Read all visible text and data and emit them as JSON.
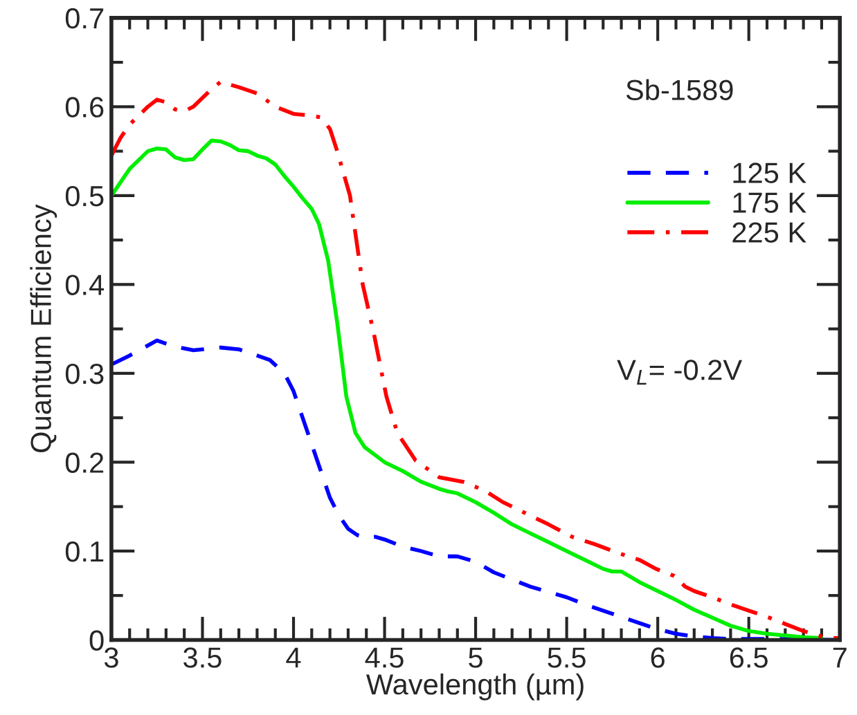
{
  "chart_data": {
    "type": "line",
    "xlabel": "Wavelength (µm)",
    "ylabel": "Quantum Efficiency",
    "annotations": [
      {
        "text": "Sb-1589"
      },
      {
        "text": "V$_{L}$= -0.2V"
      }
    ],
    "legend": "top right",
    "grid": false,
    "marker": "none",
    "xlim": [
      3,
      7
    ],
    "ylim": [
      0,
      0.7
    ],
    "xticks": [
      3,
      {
        "value": 3.1,
        "label": null
      },
      {
        "value": 3.2,
        "label": null
      },
      {
        "value": 3.3,
        "label": null
      },
      {
        "value": 3.4,
        "label": null
      },
      3.5,
      {
        "value": 3.6,
        "label": null
      },
      {
        "value": 3.7,
        "label": null
      },
      {
        "value": 3.8,
        "label": null
      },
      {
        "value": 3.9,
        "label": null
      },
      4,
      {
        "value": 4.1,
        "label": null
      },
      {
        "value": 4.2,
        "label": null
      },
      {
        "value": 4.3,
        "label": null
      },
      {
        "value": 4.4,
        "label": null
      },
      4.5,
      {
        "value": 4.6,
        "label": null
      },
      {
        "value": 4.7,
        "label": null
      },
      {
        "value": 4.8,
        "label": null
      },
      {
        "value": 4.9,
        "label": null
      },
      5,
      {
        "value": 5.1,
        "label": null
      },
      {
        "value": 5.2,
        "label": null
      },
      {
        "value": 5.3,
        "label": null
      },
      {
        "value": 5.4,
        "label": null
      },
      5.5,
      {
        "value": 5.6,
        "label": null
      },
      {
        "value": 5.7,
        "label": null
      },
      {
        "value": 5.8,
        "label": null
      },
      {
        "value": 5.9,
        "label": null
      },
      6,
      {
        "value": 6.1,
        "label": null
      },
      {
        "value": 6.2,
        "label": null
      },
      {
        "value": 6.3,
        "label": null
      },
      {
        "value": 6.4,
        "label": null
      },
      6.5,
      {
        "value": 6.6,
        "label": null
      },
      {
        "value": 6.7,
        "label": null
      },
      {
        "value": 6.8,
        "label": null
      },
      {
        "value": 6.9,
        "label": null
      },
      7
    ],
    "yticks": [
      0,
      {
        "value": 0.05,
        "label": null
      },
      0.1,
      {
        "value": 0.15,
        "label": null
      },
      0.2,
      {
        "value": 0.25,
        "label": null
      },
      0.3,
      {
        "value": 0.35,
        "label": null
      },
      0.4,
      {
        "value": 0.45,
        "label": null
      },
      0.5,
      {
        "value": 0.55,
        "label": null
      },
      0.6,
      {
        "value": 0.65,
        "label": null
      },
      0.7
    ],
    "series": [
      {
        "name": "125 K",
        "color": "#0000ff",
        "line_style": "dashed",
        "x": [
          3.0,
          3.1,
          3.25,
          3.35,
          3.45,
          3.6,
          3.7,
          3.8,
          3.87,
          3.95,
          4.0,
          4.05,
          4.1,
          4.15,
          4.2,
          4.25,
          4.3,
          4.35,
          4.4,
          4.45,
          4.5,
          4.6,
          4.7,
          4.8,
          4.9,
          5.0,
          5.1,
          5.2,
          5.3,
          5.4,
          5.5,
          5.6,
          5.7,
          5.8,
          5.9,
          6.0,
          6.1,
          6.2,
          6.3,
          6.4,
          6.5,
          6.7,
          7.0
        ],
        "values": [
          0.31,
          0.32,
          0.337,
          0.33,
          0.326,
          0.329,
          0.327,
          0.32,
          0.315,
          0.3,
          0.28,
          0.25,
          0.22,
          0.19,
          0.16,
          0.14,
          0.125,
          0.118,
          0.115,
          0.116,
          0.113,
          0.105,
          0.1,
          0.094,
          0.094,
          0.088,
          0.076,
          0.068,
          0.06,
          0.054,
          0.048,
          0.04,
          0.033,
          0.026,
          0.019,
          0.012,
          0.007,
          0.004,
          0.002,
          0.001,
          0.001,
          0.001,
          0.0
        ]
      },
      {
        "name": "175 K",
        "color": "#00ee00",
        "line_style": "solid",
        "x": [
          3.0,
          3.05,
          3.1,
          3.15,
          3.2,
          3.25,
          3.3,
          3.35,
          3.4,
          3.45,
          3.5,
          3.55,
          3.6,
          3.65,
          3.7,
          3.75,
          3.8,
          3.85,
          3.9,
          3.95,
          4.0,
          4.05,
          4.1,
          4.14,
          4.19,
          4.24,
          4.29,
          4.34,
          4.39,
          4.5,
          4.6,
          4.7,
          4.8,
          4.85,
          4.9,
          5.0,
          5.1,
          5.2,
          5.3,
          5.4,
          5.5,
          5.6,
          5.7,
          5.75,
          5.8,
          5.9,
          6.0,
          6.1,
          6.2,
          6.3,
          6.4,
          6.5,
          6.6,
          6.7,
          6.8,
          6.9
        ],
        "values": [
          0.5,
          0.515,
          0.53,
          0.54,
          0.55,
          0.553,
          0.552,
          0.543,
          0.54,
          0.541,
          0.552,
          0.562,
          0.561,
          0.557,
          0.551,
          0.55,
          0.545,
          0.542,
          0.535,
          0.522,
          0.51,
          0.497,
          0.485,
          0.468,
          0.427,
          0.357,
          0.274,
          0.233,
          0.217,
          0.2,
          0.19,
          0.178,
          0.17,
          0.167,
          0.165,
          0.155,
          0.143,
          0.13,
          0.12,
          0.11,
          0.1,
          0.09,
          0.08,
          0.077,
          0.077,
          0.065,
          0.055,
          0.045,
          0.034,
          0.025,
          0.016,
          0.01,
          0.007,
          0.005,
          0.003,
          0.002
        ]
      },
      {
        "name": "225 K",
        "color": "#ff0000",
        "line_style": "dashdot",
        "x": [
          3.0,
          3.05,
          3.1,
          3.2,
          3.25,
          3.3,
          3.35,
          3.4,
          3.45,
          3.5,
          3.55,
          3.6,
          3.7,
          3.8,
          3.9,
          4.0,
          4.1,
          4.15,
          4.2,
          4.24,
          4.31,
          4.38,
          4.44,
          4.51,
          4.57,
          4.67,
          4.8,
          4.93,
          5.05,
          5.15,
          5.3,
          5.4,
          5.53,
          5.65,
          5.78,
          5.9,
          5.99,
          6.09,
          6.15,
          6.2,
          6.3,
          6.4,
          6.5,
          6.6,
          6.7,
          6.8,
          6.93,
          7.0
        ],
        "values": [
          0.545,
          0.565,
          0.58,
          0.6,
          0.608,
          0.605,
          0.597,
          0.595,
          0.6,
          0.61,
          0.62,
          0.628,
          0.622,
          0.615,
          0.6,
          0.592,
          0.59,
          0.588,
          0.575,
          0.55,
          0.5,
          0.4,
          0.346,
          0.274,
          0.233,
          0.202,
          0.183,
          0.178,
          0.168,
          0.155,
          0.14,
          0.13,
          0.116,
          0.108,
          0.098,
          0.09,
          0.08,
          0.072,
          0.06,
          0.055,
          0.048,
          0.04,
          0.033,
          0.026,
          0.018,
          0.01,
          0.002,
          0.002
        ]
      }
    ]
  }
}
